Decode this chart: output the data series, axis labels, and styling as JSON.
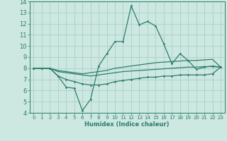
{
  "xlabel": "Humidex (Indice chaleur)",
  "x": [
    0,
    1,
    2,
    3,
    4,
    5,
    6,
    7,
    8,
    9,
    10,
    11,
    12,
    13,
    14,
    15,
    16,
    17,
    18,
    19,
    20,
    21,
    22,
    23
  ],
  "line_max": [
    8.0,
    8.0,
    8.0,
    7.3,
    6.3,
    6.2,
    4.2,
    5.2,
    8.2,
    9.3,
    10.4,
    10.4,
    13.6,
    11.9,
    12.2,
    11.8,
    10.2,
    8.4,
    9.3,
    8.7,
    7.9,
    8.1,
    8.2,
    8.1
  ],
  "line_mean_high": [
    8.0,
    8.0,
    8.0,
    7.8,
    7.7,
    7.6,
    7.5,
    7.6,
    7.7,
    7.8,
    8.0,
    8.1,
    8.2,
    8.3,
    8.4,
    8.5,
    8.55,
    8.6,
    8.65,
    8.7,
    8.7,
    8.75,
    8.8,
    8.1
  ],
  "line_mean_low": [
    8.0,
    8.0,
    8.0,
    7.7,
    7.6,
    7.5,
    7.4,
    7.3,
    7.4,
    7.5,
    7.6,
    7.7,
    7.75,
    7.8,
    7.85,
    7.9,
    7.95,
    8.0,
    8.05,
    8.1,
    8.1,
    8.15,
    8.15,
    8.1
  ],
  "line_min": [
    8.0,
    8.0,
    8.0,
    7.3,
    7.0,
    6.8,
    6.6,
    6.5,
    6.5,
    6.6,
    6.8,
    6.9,
    7.0,
    7.1,
    7.2,
    7.2,
    7.3,
    7.3,
    7.4,
    7.4,
    7.4,
    7.4,
    7.5,
    8.1
  ],
  "color": "#2E7D6E",
  "bg_color": "#CCE8E0",
  "grid_color": "#AACFC7",
  "ylim": [
    4,
    14
  ],
  "xlim": [
    -0.5,
    23.5
  ],
  "yticks": [
    4,
    5,
    6,
    7,
    8,
    9,
    10,
    11,
    12,
    13,
    14
  ],
  "xticks": [
    0,
    1,
    2,
    3,
    4,
    5,
    6,
    7,
    8,
    9,
    10,
    11,
    12,
    13,
    14,
    15,
    16,
    17,
    18,
    19,
    20,
    21,
    22,
    23
  ]
}
